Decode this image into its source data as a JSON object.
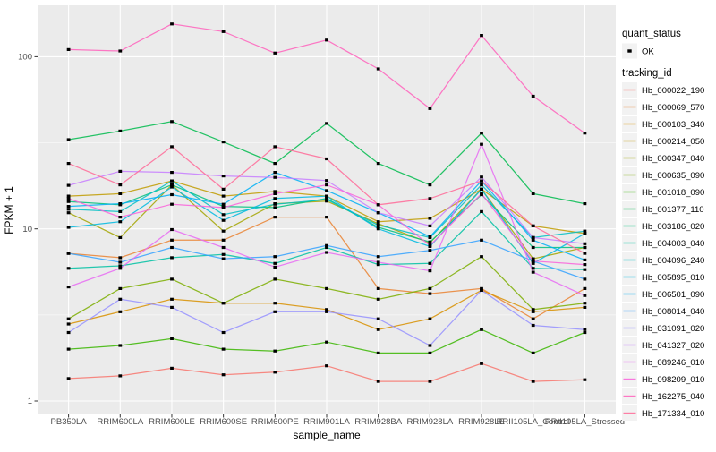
{
  "legend": {
    "quant_status_title": "quant_status",
    "quant_items": [
      {
        "label": "OK"
      }
    ],
    "tracking_id_title": "tracking_id"
  },
  "colors": {
    "panel_bg": "#EBEBEB",
    "grid": "#FFFFFF",
    "legend_key_bg": "#F2F2F2",
    "point": "#000000",
    "tick_text": "#4D4D4D"
  },
  "chart_data": {
    "type": "line",
    "title": "",
    "x_axis_label": "sample_name",
    "y_axis_label": "FPKM + 1",
    "y_scale": "log10",
    "ylim": [
      1,
      200
    ],
    "y_ticks": [
      1,
      10,
      100
    ],
    "y_minor_ticks": [
      3.16,
      31.6
    ],
    "grid": true,
    "legend_position": "right",
    "categories": [
      "PB350LA",
      "RRIM600LA",
      "RRIM600LE",
      "RRIM600SE",
      "RRIM600PE",
      "RRIM901LA",
      "RRIM928BA",
      "RRIM928LA",
      "RRIM928LE",
      "RRII105LA_Control",
      "RRII105LA_Stressed"
    ],
    "series": [
      {
        "name": "Hb_000022_190",
        "color": "#F8766D",
        "values": [
          1.35,
          1.4,
          1.55,
          1.42,
          1.47,
          1.6,
          1.3,
          1.3,
          1.65,
          1.3,
          1.33
        ]
      },
      {
        "name": "Hb_000069_570",
        "color": "#EA8331",
        "values": [
          7.2,
          6.8,
          8.6,
          8.6,
          11.7,
          11.7,
          4.5,
          4.2,
          4.5,
          3.0,
          4.5
        ]
      },
      {
        "name": "Hb_000103_340",
        "color": "#D89000",
        "values": [
          2.8,
          3.3,
          3.9,
          3.7,
          3.7,
          3.4,
          2.6,
          3.0,
          4.4,
          3.3,
          3.5
        ]
      },
      {
        "name": "Hb_000214_050",
        "color": "#C09B00",
        "values": [
          15.5,
          16,
          19,
          15.5,
          16.5,
          15.5,
          11,
          11.5,
          17,
          10.4,
          9.4
        ]
      },
      {
        "name": "Hb_000347_040",
        "color": "#A3A500",
        "values": [
          12.4,
          8.9,
          18,
          9.7,
          14,
          14.5,
          10.7,
          8.3,
          17,
          6.7,
          7.8
        ]
      },
      {
        "name": "Hb_000635_090",
        "color": "#7CAE00",
        "values": [
          3.0,
          4.5,
          5.1,
          3.7,
          5.1,
          4.5,
          3.9,
          4.5,
          6.9,
          3.4,
          3.7
        ]
      },
      {
        "name": "Hb_001018_090",
        "color": "#39B600",
        "values": [
          2.0,
          2.1,
          2.3,
          2.0,
          1.95,
          2.2,
          1.9,
          1.9,
          2.6,
          1.9,
          2.5
        ]
      },
      {
        "name": "Hb_001377_110",
        "color": "#00BB4E",
        "values": [
          33,
          37,
          42,
          32,
          24,
          41,
          24,
          18,
          36,
          16,
          14
        ]
      },
      {
        "name": "Hb_003186_020",
        "color": "#00BF7D",
        "values": [
          14.4,
          13.8,
          18,
          13.5,
          13.3,
          15,
          10.2,
          8.4,
          15.8,
          7.8,
          7.8
        ]
      },
      {
        "name": "Hb_004003_040",
        "color": "#00C1A3",
        "values": [
          5.9,
          6.1,
          6.8,
          7.1,
          6.3,
          7.8,
          6.2,
          6.3,
          12.6,
          5.9,
          5.8
        ]
      },
      {
        "name": "Hb_004096_240",
        "color": "#00BFC4",
        "values": [
          13,
          12.6,
          19,
          12.1,
          13.9,
          14.8,
          10.5,
          8.9,
          18,
          8.9,
          9.7
        ]
      },
      {
        "name": "Hb_005895_010",
        "color": "#00BAE0",
        "values": [
          10.2,
          11,
          17.5,
          11.2,
          15,
          15.5,
          10,
          7.9,
          17,
          6.3,
          9.4
        ]
      },
      {
        "name": "Hb_006501_090",
        "color": "#00B0F6",
        "values": [
          13.5,
          14,
          15.8,
          13.9,
          21.3,
          16.7,
          12.4,
          9,
          19,
          8.6,
          6.6
        ]
      },
      {
        "name": "Hb_008014_040",
        "color": "#35A2FF",
        "values": [
          7.2,
          6.4,
          7.8,
          6.7,
          6.9,
          8,
          6.9,
          7.5,
          8.6,
          6.5,
          5.1
        ]
      },
      {
        "name": "Hb_031091_020",
        "color": "#9590FF",
        "values": [
          2.5,
          3.9,
          3.5,
          2.5,
          3.3,
          3.3,
          3.0,
          2.1,
          4.4,
          2.75,
          2.6
        ]
      },
      {
        "name": "Hb_041327_020",
        "color": "#C77CFF",
        "values": [
          17.9,
          21.6,
          21.3,
          20.3,
          19.9,
          19.1,
          12.4,
          10.4,
          20,
          8.9,
          8.2
        ]
      },
      {
        "name": "Hb_089246_010",
        "color": "#E76BF3",
        "values": [
          4.6,
          5.9,
          9.9,
          7.8,
          6.0,
          7.3,
          6.4,
          5.7,
          31,
          5.6,
          4.1
        ]
      },
      {
        "name": "Hb_098209_010",
        "color": "#FA62DB",
        "values": [
          15,
          11.7,
          13.9,
          13.3,
          16,
          18,
          13.8,
          8.0,
          16,
          6.5,
          6.2
        ]
      },
      {
        "name": "Hb_162275_040",
        "color": "#FF62BC",
        "values": [
          110,
          108,
          155,
          140,
          105,
          125,
          85,
          50,
          133,
          59,
          36
        ]
      },
      {
        "name": "Hb_171334_010",
        "color": "#FF6A98",
        "values": [
          24,
          18,
          30,
          17,
          30,
          25.5,
          13.8,
          15,
          19,
          10.4,
          7.2
        ]
      }
    ]
  }
}
